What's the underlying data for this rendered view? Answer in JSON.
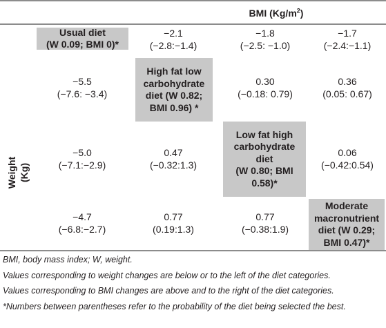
{
  "header": {
    "title": "BMI (Kg/m",
    "title_sup": "2",
    "title_end": ")"
  },
  "row_label": {
    "line1": "Weight",
    "line2": "(Kg)"
  },
  "matrix": [
    [
      {
        "lines": [
          "Usual diet",
          "(W 0.09; BMI 0)*"
        ]
      },
      {
        "lines": [
          "−2.1",
          "(−2.8:−1.4)"
        ]
      },
      {
        "lines": [
          "−1.8",
          "(−2.5: −1.0)"
        ]
      },
      {
        "lines": [
          "−1.7",
          "(−2.4:−1.1)"
        ]
      }
    ],
    [
      {
        "lines": [
          "−5.5",
          "(−7.6: −3.4)"
        ]
      },
      {
        "lines": [
          "High fat low",
          "carbohydrate",
          "diet (W 0.82;",
          "BMI 0.96) *"
        ]
      },
      {
        "lines": [
          "0.30",
          "(−0.18: 0.79)"
        ]
      },
      {
        "lines": [
          "0.36",
          "(0.05: 0.67)"
        ]
      }
    ],
    [
      {
        "lines": [
          "−5.0",
          "(−7.1:−2.9)"
        ]
      },
      {
        "lines": [
          "0.47",
          "(−0.32:1.3)"
        ]
      },
      {
        "lines": [
          "Low fat high",
          "carbohydrate",
          "diet",
          "(W 0.80; BMI",
          "0.58)*"
        ]
      },
      {
        "lines": [
          "0.06",
          "(−0.42:0.54)"
        ]
      }
    ],
    [
      {
        "lines": [
          "−4.7",
          "(−6.8:−2.7)"
        ]
      },
      {
        "lines": [
          "0.77",
          "(0.19:1.3)"
        ]
      },
      {
        "lines": [
          "0.77",
          "(−0.38:1.9)"
        ]
      },
      {
        "lines": [
          "Moderate",
          "macronutrient",
          "diet (W 0.29;",
          "BMI 0.47)*"
        ]
      }
    ]
  ],
  "footnotes": [
    "BMI, body mass index; W, weight.",
    "Values corresponding to weight changes are below or to the left of the diet categories.",
    "Values corresponding to BMI changes are above and to the right of the diet categories.",
    "*Numbers between parentheses refer to the probability of the diet being selected the best."
  ]
}
